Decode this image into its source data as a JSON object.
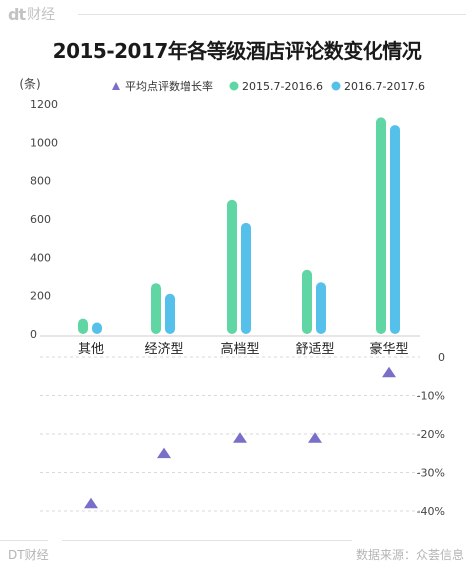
{
  "brand": {
    "logo_mark": "dt",
    "logo_text": "财经"
  },
  "footer": {
    "left": "DT财经",
    "right": "数据来源：众荟信息"
  },
  "colors": {
    "series1": "#5fd6a3",
    "series2": "#55c0ea",
    "triangle": "#7a6fc8",
    "axis_text": "#444444",
    "grid": "#e6e6e6"
  },
  "chart_data": {
    "type": "bar",
    "title": "2015-2017年各等级酒店评论数变化情况",
    "ylabel": "(条)",
    "categories": [
      "其他",
      "经济型",
      "高档型",
      "舒适型",
      "豪华型"
    ],
    "ylim": [
      0,
      1200
    ],
    "yticks": [
      0,
      200,
      400,
      600,
      800,
      1000,
      1200
    ],
    "series": [
      {
        "name": "2015.7-2016.6",
        "values": [
          80,
          265,
          700,
          335,
          1130
        ]
      },
      {
        "name": "2016.7-2017.6",
        "values": [
          60,
          210,
          580,
          270,
          1090
        ]
      }
    ],
    "growth": {
      "name": "平均点评数增长率",
      "type": "scatter",
      "values": [
        -38,
        -25,
        -21,
        -21,
        -4
      ],
      "ylim": [
        -40,
        0
      ],
      "ticks": [
        "0",
        "-10%",
        "-20%",
        "-30%",
        "-40%"
      ]
    },
    "legend": "top"
  }
}
